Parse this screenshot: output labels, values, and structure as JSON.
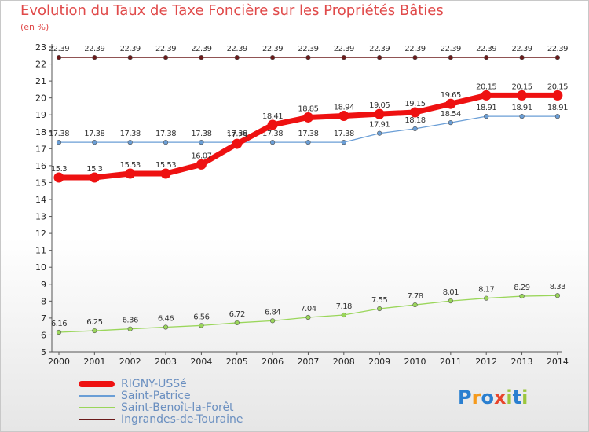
{
  "header": {
    "title": "Evolution du Taux de Taxe Foncière sur les Propriétés Bâties",
    "subtitle": "(en %)"
  },
  "logo": {
    "letters": [
      "P",
      "r",
      "o",
      "x",
      "i",
      "t",
      "i"
    ],
    "colors": [
      "#2a7fd0",
      "#f59a1c",
      "#2a7fd0",
      "#e8452c",
      "#9bc63c",
      "#2a7fd0",
      "#9bc63c"
    ]
  },
  "chart_data": {
    "type": "line",
    "title": "Evolution du Taux de Taxe Foncière sur les Propriétés Bâties",
    "ylabel": "(en %)",
    "xlabel": "",
    "ylim": [
      5,
      23
    ],
    "yticks": [
      5,
      6,
      7,
      8,
      9,
      10,
      11,
      12,
      13,
      14,
      15,
      16,
      17,
      18,
      19,
      20,
      21,
      22,
      23
    ],
    "x": [
      "2000",
      "2001",
      "2002",
      "2003",
      "2004",
      "2005",
      "2006",
      "2007",
      "2008",
      "2009",
      "2010",
      "2011",
      "2012",
      "2013",
      "2014"
    ],
    "series": [
      {
        "name": "Ingrandes-de-Touraine",
        "color": "#6b1a1a",
        "values": [
          22.39,
          22.39,
          22.39,
          22.39,
          22.39,
          22.39,
          22.39,
          22.39,
          22.39,
          22.39,
          22.39,
          22.39,
          22.39,
          22.39,
          22.39
        ],
        "labels": [
          "22.39",
          "22.39",
          "22.39",
          "22.39",
          "22.39",
          "22.39",
          "22.39",
          "22.39",
          "22.39",
          "22.39",
          "22.39",
          "22.39",
          "22.39",
          "22.39",
          "22.39"
        ]
      },
      {
        "name": "Saint-Patrice",
        "color": "#6a9ed6",
        "values": [
          17.38,
          17.38,
          17.38,
          17.38,
          17.38,
          17.38,
          17.38,
          17.38,
          17.38,
          17.91,
          18.18,
          18.54,
          18.91,
          18.91,
          18.91
        ],
        "labels": [
          "17.38",
          "17.38",
          "17.38",
          "17.38",
          "17.38",
          "17.38",
          "17.38",
          "17.38",
          "17.38",
          "17.91",
          "18.18",
          "18.54",
          "18.91",
          "18.91",
          "18.91"
        ]
      },
      {
        "name": "Saint-Benoît-la-Forêt",
        "color": "#9ad65a",
        "values": [
          6.16,
          6.25,
          6.36,
          6.46,
          6.56,
          6.72,
          6.84,
          7.04,
          7.18,
          7.55,
          7.78,
          8.01,
          8.17,
          8.29,
          8.33
        ],
        "labels": [
          "6.16",
          "6.25",
          "6.36",
          "6.46",
          "6.56",
          "6.72",
          "6.84",
          "7.04",
          "7.18",
          "7.55",
          "7.78",
          "8.01",
          "8.17",
          "8.29",
          "8.33"
        ]
      },
      {
        "name": "RIGNY-USSé",
        "color": "#ee1111",
        "values": [
          15.3,
          15.3,
          15.53,
          15.53,
          16.07,
          17.29,
          18.41,
          18.85,
          18.94,
          19.05,
          19.15,
          19.65,
          20.15,
          20.15,
          20.15
        ],
        "labels": [
          "15.3",
          "15.3",
          "15.53",
          "15.53",
          "16.07",
          "17.29",
          "18.41",
          "18.85",
          "18.94",
          "19.05",
          "19.15",
          "19.65",
          "20.15",
          "20.15",
          "20.15"
        ]
      }
    ],
    "legend_order": [
      "RIGNY-USSé",
      "Saint-Patrice",
      "Saint-Benoît-la-Forêt",
      "Ingrandes-de-Touraine"
    ],
    "legend": "bottom-left"
  }
}
